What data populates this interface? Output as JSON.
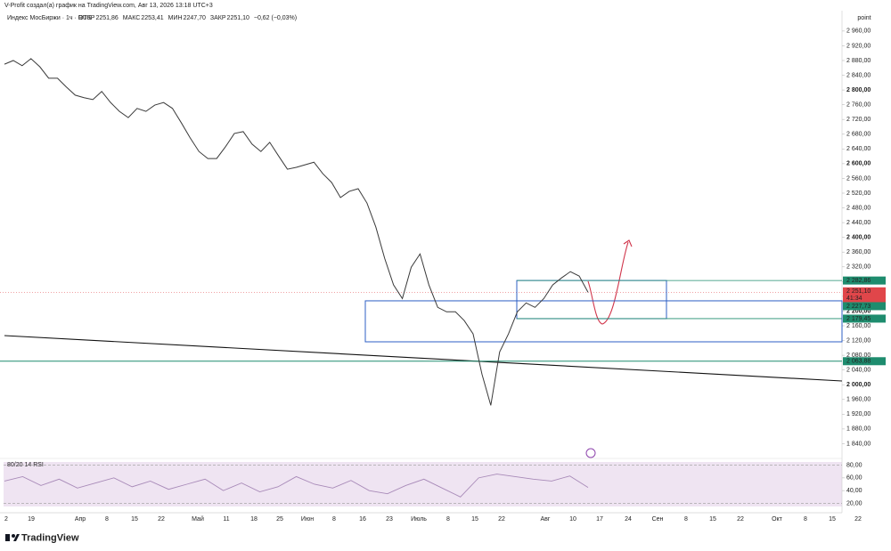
{
  "header": {
    "credit": "V-Profit создал(а) график на TradingView.com, Авг 13, 2026 13:18 UTC+3",
    "symbol": "Индекс МосБиржи · 1ч · RUS",
    "ohlc": [
      {
        "label": "ОТКР",
        "value": "2251,86"
      },
      {
        "label": "МАКС",
        "value": "2253,41"
      },
      {
        "label": "МИН",
        "value": "2247,70"
      },
      {
        "label": "ЗАКР",
        "value": "2251,10"
      }
    ],
    "change": "−0,62 (−0,03%)"
  },
  "brand": "TradingView",
  "chart_data": [
    {
      "type": "line",
      "axis_unit": "point",
      "color": "#3a3a3a",
      "x_labels": [
        "2",
        "19",
        "Апр",
        "8",
        "15",
        "22",
        "Май",
        "11",
        "18",
        "25",
        "Июн",
        "8",
        "16",
        "23",
        "Июль",
        "8",
        "15",
        "22",
        "Авг",
        "10",
        "17",
        "24",
        "Сен",
        "8",
        "15",
        "22",
        "Окт",
        "8",
        "15",
        "22"
      ],
      "values": [
        2870,
        2880,
        2866,
        2885,
        2863,
        2832,
        2832,
        2808,
        2786,
        2779,
        2774,
        2796,
        2766,
        2742,
        2725,
        2750,
        2742,
        2759,
        2766,
        2750,
        2711,
        2670,
        2633,
        2614,
        2614,
        2646,
        2682,
        2687,
        2653,
        2633,
        2658,
        2621,
        2585,
        2590,
        2597,
        2604,
        2573,
        2549,
        2508,
        2525,
        2532,
        2493,
        2428,
        2343,
        2271,
        2234,
        2319,
        2355,
        2271,
        2210,
        2198,
        2198,
        2174,
        2138,
        2029,
        1944,
        2089,
        2138,
        2198,
        2222,
        2210,
        2234,
        2271,
        2290,
        2307,
        2295,
        2251
      ],
      "ylim": [
        1800,
        3008
      ],
      "yticks": [
        {
          "value": 1840,
          "label": "1 840,00"
        },
        {
          "value": 1880,
          "label": "1 880,00"
        },
        {
          "value": 1920,
          "label": "1 920,00"
        },
        {
          "value": 1960,
          "label": "1 960,00"
        },
        {
          "value": 2000,
          "label": "2 000,00"
        },
        {
          "value": 2040,
          "label": "2 040,00"
        },
        {
          "value": 2080,
          "label": "2 080,00"
        },
        {
          "value": 2120,
          "label": "2 120,00"
        },
        {
          "value": 2160,
          "label": "2 160,00"
        },
        {
          "value": 2200,
          "label": "2 200,00"
        },
        {
          "value": 2240,
          "label": "2 240,00"
        },
        {
          "value": 2280,
          "label": "2 280,00"
        },
        {
          "value": 2320,
          "label": "2 320,00"
        },
        {
          "value": 2360,
          "label": "2 360,00"
        },
        {
          "value": 2400,
          "label": "2 400,00"
        },
        {
          "value": 2440,
          "label": "2 440,00"
        },
        {
          "value": 2480,
          "label": "2 480,00"
        },
        {
          "value": 2520,
          "label": "2 520,00"
        },
        {
          "value": 2560,
          "label": "2 560,00"
        },
        {
          "value": 2600,
          "label": "2 600,00"
        },
        {
          "value": 2640,
          "label": "2 640,00"
        },
        {
          "value": 2680,
          "label": "2 680,00"
        },
        {
          "value": 2720,
          "label": "2 720,00"
        },
        {
          "value": 2760,
          "label": "2 760,00"
        },
        {
          "value": 2800,
          "label": "2 800,00"
        },
        {
          "value": 2840,
          "label": "2 840,00"
        },
        {
          "value": 2880,
          "label": "2 880,00"
        },
        {
          "value": 2920,
          "label": "2 920,00"
        },
        {
          "value": 2960,
          "label": "2 960,00"
        }
      ],
      "price_labels": [
        {
          "value": 2282.86,
          "label": "2 282,86",
          "color": "#1e8c6e"
        },
        {
          "value": 2251.1,
          "label": "2 251,10",
          "color": "#e0464a"
        },
        {
          "value": 2227.73,
          "label": "2 227,73",
          "color": "#1e8c6e"
        },
        {
          "value": 2179.45,
          "label": "2 179,45",
          "color": "#1e8c6e"
        },
        {
          "value": 2063.88,
          "label": "2 063,88",
          "color": "#1e8c6e"
        }
      ],
      "countdown": "41:34"
    },
    {
      "type": "line",
      "title": "80/20 14 RSI",
      "color": "#a88ab8",
      "ylim": [
        15,
        85
      ],
      "yticks": [
        {
          "value": 80,
          "label": "80,00"
        },
        {
          "value": 60,
          "label": "60,00"
        },
        {
          "value": 40,
          "label": "40,00"
        },
        {
          "value": 20,
          "label": "20,00"
        }
      ],
      "values": [
        55,
        62,
        48,
        58,
        44,
        52,
        60,
        46,
        55,
        42,
        50,
        58,
        40,
        52,
        38,
        46,
        62,
        50,
        44,
        56,
        40,
        35,
        48,
        58,
        44,
        30,
        60,
        66,
        62,
        58,
        55,
        63,
        45
      ]
    }
  ]
}
